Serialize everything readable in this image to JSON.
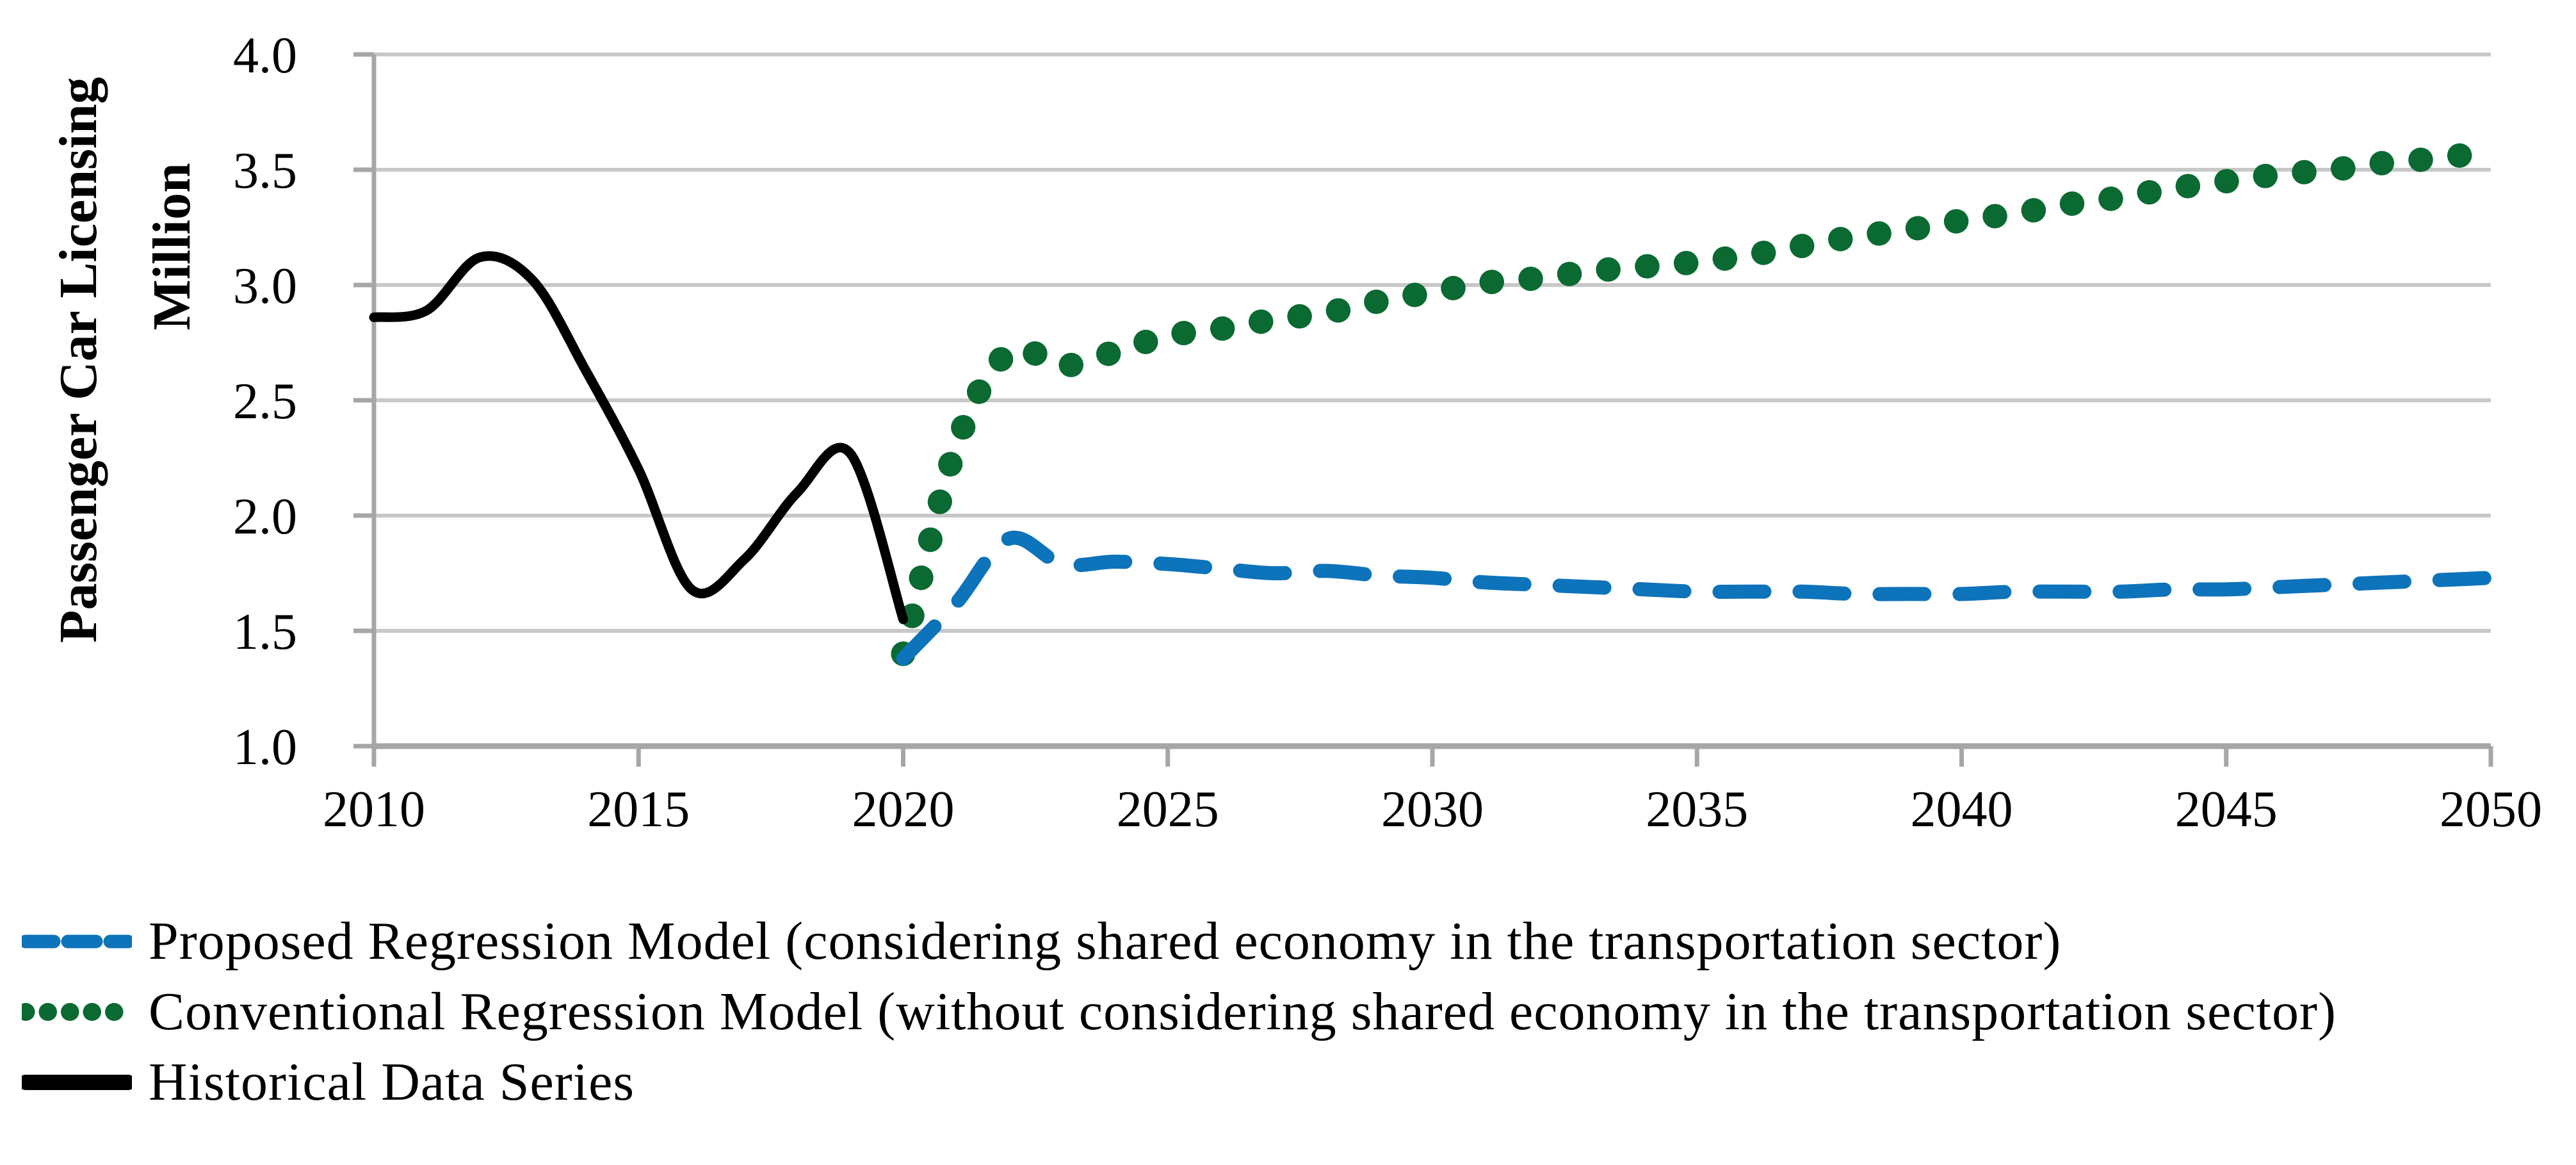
{
  "chart_data": {
    "type": "line",
    "title": "",
    "ylabel": "Passenger Car Licensing",
    "ylabel_unit": "Million",
    "xlabel": "",
    "ylim": [
      1.0,
      4.0
    ],
    "xlim": [
      2010,
      2050
    ],
    "grid": "horizontal gridlines on",
    "legend_position": "bottom-left",
    "grid_color": "#c8c8c8",
    "axis_color": "#a6a6a6",
    "text_color": "#000000",
    "y_tick_values": [
      4.0,
      3.5,
      3.0,
      2.5,
      2.0,
      1.5,
      1.0
    ],
    "y_tick_labels": [
      "4.0",
      "3.5",
      "3.0",
      "2.5",
      "2.0",
      "1.5",
      "1.0"
    ],
    "x_tick_values": [
      2010,
      2015,
      2020,
      2025,
      2030,
      2035,
      2040,
      2045,
      2050
    ],
    "x_tick_labels": [
      "2010",
      "2015",
      "2020",
      "2025",
      "2030",
      "2035",
      "2040",
      "2045",
      "2050"
    ],
    "series": [
      {
        "name": "Proposed Regression Model (considering shared economy in the transportation sector)",
        "style": "dashed",
        "color": "#0d73ba",
        "year_start": 2020,
        "values": [
          1.38,
          1.62,
          1.9,
          1.79,
          1.8,
          1.79,
          1.77,
          1.75,
          1.76,
          1.74,
          1.73,
          1.71,
          1.7,
          1.69,
          1.68,
          1.67,
          1.67,
          1.67,
          1.66,
          1.66,
          1.66,
          1.67,
          1.67,
          1.67,
          1.68,
          1.68,
          1.69,
          1.7,
          1.71,
          1.72,
          1.73
        ]
      },
      {
        "name": "Conventional Regression Model (without considering shared economy in the transportation sector)",
        "style": "dotted",
        "color": "#0a6a31",
        "year_start": 2020,
        "values": [
          1.4,
          2.3,
          2.71,
          2.65,
          2.71,
          2.78,
          2.81,
          2.85,
          2.88,
          2.93,
          2.97,
          3.01,
          3.03,
          3.06,
          3.08,
          3.1,
          3.13,
          3.17,
          3.21,
          3.24,
          3.28,
          3.31,
          3.35,
          3.38,
          3.42,
          3.45,
          3.48,
          3.5,
          3.53,
          3.55,
          3.58
        ]
      },
      {
        "name": "Historical Data Series",
        "style": "solid",
        "color": "#000000",
        "year_start": 2010,
        "values": [
          2.86,
          2.89,
          3.12,
          3.02,
          2.63,
          2.2,
          1.68,
          1.81,
          2.1,
          2.27,
          1.55
        ]
      }
    ]
  },
  "legend": {
    "items": [
      {
        "label": "Proposed Regression Model (considering shared economy in the transportation sector)"
      },
      {
        "label": "Conventional Regression Model (without considering shared economy in the transportation sector)"
      },
      {
        "label": "Historical Data Series"
      }
    ]
  }
}
